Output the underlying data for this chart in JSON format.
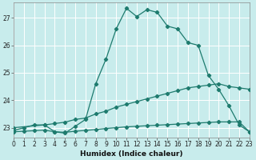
{
  "title": "",
  "xlabel": "Humidex (Indice chaleur)",
  "bg_color": "#c8ecec",
  "grid_color": "#b0d8d8",
  "line_color": "#1e7b6e",
  "xlim": [
    0,
    23
  ],
  "ylim": [
    22.65,
    27.55
  ],
  "yticks": [
    23,
    24,
    25,
    26,
    27
  ],
  "xticks": [
    0,
    1,
    2,
    3,
    4,
    5,
    6,
    7,
    8,
    9,
    10,
    11,
    12,
    13,
    14,
    15,
    16,
    17,
    18,
    19,
    20,
    21,
    22,
    23
  ],
  "line1_x": [
    0,
    1,
    2,
    3,
    4,
    5,
    6,
    7,
    8,
    9,
    10,
    11,
    12,
    13,
    14,
    15,
    16,
    17,
    18,
    19,
    20,
    21,
    22,
    23
  ],
  "line1_y": [
    22.9,
    23.0,
    23.1,
    23.1,
    22.85,
    22.8,
    23.05,
    23.3,
    24.6,
    25.5,
    26.6,
    27.35,
    27.05,
    27.3,
    27.2,
    26.7,
    26.6,
    26.1,
    26.0,
    24.9,
    24.4,
    23.8,
    23.1,
    22.85
  ],
  "line2_x": [
    0,
    3,
    4,
    5,
    6,
    7,
    8,
    9,
    10,
    11,
    12,
    13,
    14,
    15,
    16,
    17,
    18,
    19,
    20,
    21,
    22,
    23
  ],
  "line2_y": [
    23.0,
    23.1,
    23.15,
    23.2,
    23.3,
    23.35,
    23.5,
    23.6,
    23.75,
    23.85,
    23.95,
    24.05,
    24.15,
    24.25,
    24.35,
    24.45,
    24.5,
    24.55,
    24.6,
    24.5,
    24.45,
    24.4
  ],
  "line3_x": [
    0,
    1,
    2,
    3,
    4,
    5,
    6,
    7,
    8,
    9,
    10,
    11,
    12,
    13,
    14,
    15,
    16,
    17,
    18,
    19,
    20,
    21,
    22,
    23
  ],
  "line3_y": [
    22.85,
    22.87,
    22.89,
    22.91,
    22.85,
    22.83,
    22.87,
    22.9,
    22.93,
    22.97,
    23.0,
    23.03,
    23.05,
    23.07,
    23.09,
    23.11,
    23.13,
    23.15,
    23.17,
    23.19,
    23.21,
    23.21,
    23.21,
    22.85
  ]
}
